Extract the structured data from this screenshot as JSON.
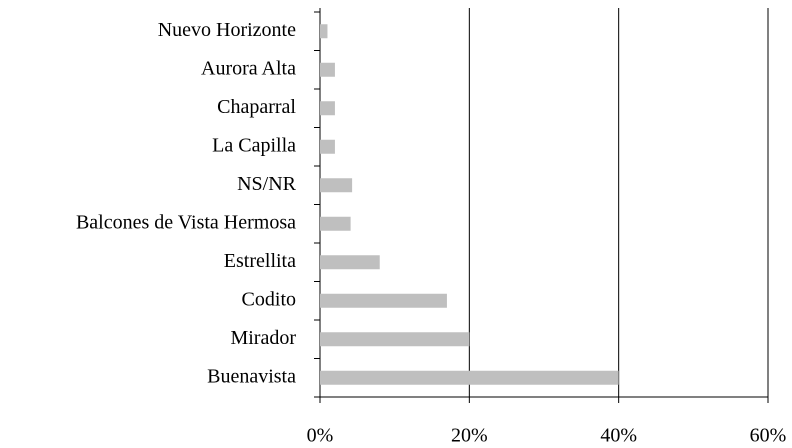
{
  "chart_data": {
    "type": "barh",
    "categories": [
      "Nuevo Horizonte",
      "Aurora Alta",
      "Chaparral",
      "La Capilla",
      "NS/NR",
      "Balcones de Vista Hermosa",
      "Estrellita",
      "Codito",
      "Mirador",
      "Buenavista"
    ],
    "values": [
      1,
      2,
      2,
      2,
      4.3,
      4.1,
      8,
      17,
      20,
      40
    ],
    "color": "#bfbfbf",
    "xlim": [
      0,
      60
    ],
    "xticks": [
      {
        "value": 0,
        "label": "0%"
      },
      {
        "value": 20,
        "label": "20%"
      },
      {
        "value": 40,
        "label": "40%"
      },
      {
        "value": 60,
        "label": "60%"
      }
    ],
    "grid": true
  }
}
